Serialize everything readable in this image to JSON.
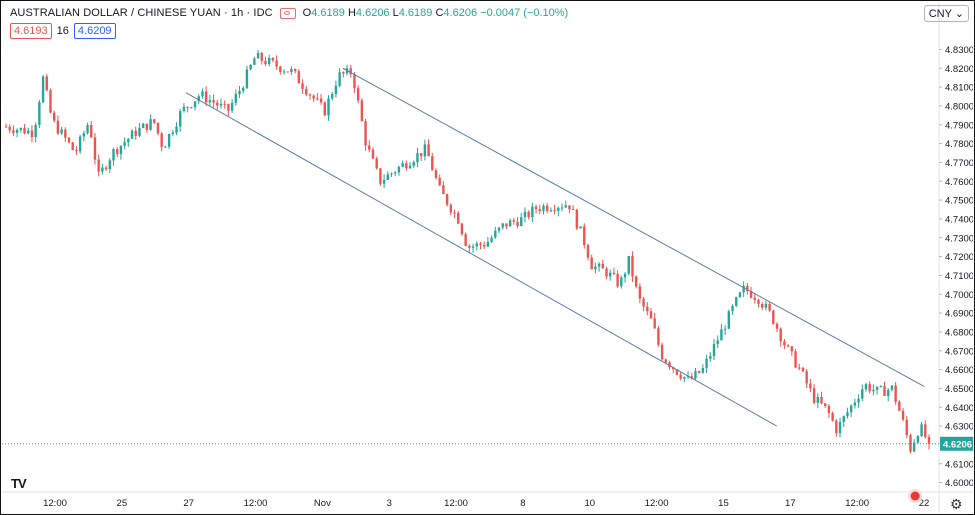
{
  "header": {
    "symbol": "AUSTRALIAN DOLLAR / CHINESE YUAN · 1h · IDC",
    "o_label": "O",
    "o": "4.6189",
    "h_label": "H",
    "h": "4.6206",
    "l_label": "L",
    "l": "4.6189",
    "c_label": "C",
    "c": "4.6206",
    "change": "−0.0047 (−0.10%)"
  },
  "quotes": {
    "bid": "4.6193",
    "spread": "16",
    "ask": "4.6209"
  },
  "currency_button": "CNY",
  "last_price_label": "4.6206",
  "colors": {
    "up": "#26a69a",
    "down": "#ef5350",
    "channel": "#5b7fa6",
    "grid": "#f0f3fa"
  },
  "chart_data": {
    "type": "candlestick",
    "instrument": "AUSTRALIAN DOLLAR / CHINESE YUAN",
    "interval": "1h",
    "y_range": [
      4.595,
      4.835
    ],
    "y_ticks": [
      "4.8300",
      "4.8200",
      "4.8100",
      "4.8000",
      "4.7900",
      "4.7800",
      "4.7700",
      "4.7600",
      "4.7500",
      "4.7400",
      "4.7300",
      "4.7200",
      "4.7100",
      "4.7000",
      "4.6900",
      "4.6800",
      "4.6700",
      "4.6600",
      "4.6500",
      "4.6400",
      "4.6300",
      "4.6100",
      "4.6000"
    ],
    "x_ticks": [
      "12:00",
      "25",
      "27",
      "12:00",
      "Nov",
      "3",
      "12:00",
      "8",
      "10",
      "12:00",
      "15",
      "17",
      "12:00",
      "22"
    ],
    "last_price": 4.6206,
    "price_path": [
      [
        0,
        4.789
      ],
      [
        0.03,
        4.786
      ],
      [
        0.04,
        4.815
      ],
      [
        0.05,
        4.792
      ],
      [
        0.065,
        4.782
      ],
      [
        0.075,
        4.775
      ],
      [
        0.09,
        4.792
      ],
      [
        0.1,
        4.762
      ],
      [
        0.115,
        4.775
      ],
      [
        0.14,
        4.786
      ],
      [
        0.16,
        4.792
      ],
      [
        0.17,
        4.778
      ],
      [
        0.19,
        4.797
      ],
      [
        0.21,
        4.806
      ],
      [
        0.225,
        4.802
      ],
      [
        0.24,
        4.797
      ],
      [
        0.255,
        4.81
      ],
      [
        0.27,
        4.826
      ],
      [
        0.29,
        4.822
      ],
      [
        0.31,
        4.818
      ],
      [
        0.33,
        4.806
      ],
      [
        0.345,
        4.797
      ],
      [
        0.36,
        4.816
      ],
      [
        0.375,
        4.818
      ],
      [
        0.39,
        4.78
      ],
      [
        0.405,
        4.76
      ],
      [
        0.425,
        4.767
      ],
      [
        0.44,
        4.772
      ],
      [
        0.455,
        4.777
      ],
      [
        0.47,
        4.755
      ],
      [
        0.49,
        4.74
      ],
      [
        0.5,
        4.725
      ],
      [
        0.52,
        4.727
      ],
      [
        0.54,
        4.737
      ],
      [
        0.56,
        4.74
      ],
      [
        0.575,
        4.746
      ],
      [
        0.59,
        4.747
      ],
      [
        0.61,
        4.748
      ],
      [
        0.625,
        4.73
      ],
      [
        0.635,
        4.715
      ],
      [
        0.65,
        4.712
      ],
      [
        0.665,
        4.705
      ],
      [
        0.675,
        4.718
      ],
      [
        0.685,
        4.698
      ],
      [
        0.7,
        4.685
      ],
      [
        0.71,
        4.668
      ],
      [
        0.725,
        4.66
      ],
      [
        0.74,
        4.654
      ],
      [
        0.755,
        4.66
      ],
      [
        0.77,
        4.675
      ],
      [
        0.79,
        4.695
      ],
      [
        0.8,
        4.703
      ],
      [
        0.815,
        4.698
      ],
      [
        0.83,
        4.688
      ],
      [
        0.845,
        4.672
      ],
      [
        0.86,
        4.66
      ],
      [
        0.875,
        4.645
      ],
      [
        0.89,
        4.638
      ],
      [
        0.9,
        4.628
      ],
      [
        0.915,
        4.64
      ],
      [
        0.93,
        4.652
      ],
      [
        0.945,
        4.648
      ],
      [
        0.96,
        4.65
      ],
      [
        0.97,
        4.635
      ],
      [
        0.98,
        4.618
      ],
      [
        0.99,
        4.63
      ],
      [
        1.0,
        4.6206
      ]
    ],
    "channel_lines": [
      {
        "x1": 0.195,
        "y1": 4.807,
        "x2": 0.835,
        "y2": 4.63
      },
      {
        "x1": 0.365,
        "y1": 4.82,
        "x2": 0.995,
        "y2": 4.651
      }
    ]
  }
}
